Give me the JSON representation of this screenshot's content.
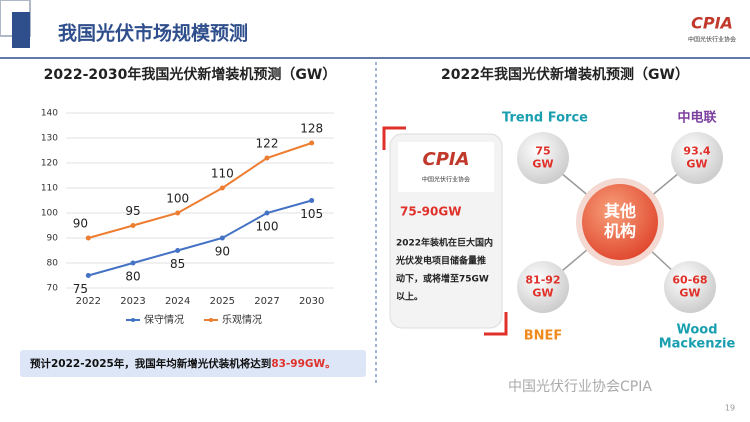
{
  "slide": {
    "title": "我国光伏市场规模预测",
    "logo": "CPIA",
    "logo_sub": "中国光伏行业协会",
    "summary_text": "预计2022-2025年，我国年均新增光伏装机将达到",
    "summary_highlight": "83-99GW。",
    "watermark": "中国光伏行业协会CPIA",
    "page": "19"
  },
  "chart_data": {
    "type": "line",
    "title": "2022-2030年我国光伏新增装机预测（GW）",
    "categories": [
      "2022",
      "2023",
      "2024",
      "2025",
      "2027",
      "2030"
    ],
    "series": [
      {
        "name": "保守情况",
        "color": "#4472c4",
        "values": [
          75,
          80,
          85,
          90,
          100,
          105
        ]
      },
      {
        "name": "乐观情况",
        "color": "#ed7d31",
        "values": [
          90,
          95,
          100,
          110,
          122,
          128
        ]
      }
    ],
    "ylim": [
      70,
      140
    ],
    "yticks": [
      70,
      80,
      90,
      100,
      110,
      120,
      130,
      140
    ],
    "grid": true,
    "legend": "bottom"
  },
  "diagram": {
    "title": "2022年我国光伏新增装机预测（GW）",
    "center": [
      "其他",
      "机构"
    ],
    "card": {
      "logo": "CPIA",
      "logo_sub": "中国光伏行业协会",
      "value": "75-90GW",
      "lines": [
        "2022年装机在巨大国内",
        "光伏发电项目储备量推",
        "动下，或将增至75GW",
        "以上。"
      ]
    },
    "nodes": [
      {
        "label": [
          "Trend Force"
        ],
        "value": [
          "75",
          "GW"
        ]
      },
      {
        "label": [
          "中电联"
        ],
        "value": [
          "93.4",
          "GW"
        ]
      },
      {
        "label": [
          "BNEF"
        ],
        "value": [
          "81-92",
          "GW"
        ]
      },
      {
        "label": [
          "Wood",
          "Mackenzie"
        ],
        "value": [
          "60-68",
          "GW"
        ]
      }
    ]
  }
}
